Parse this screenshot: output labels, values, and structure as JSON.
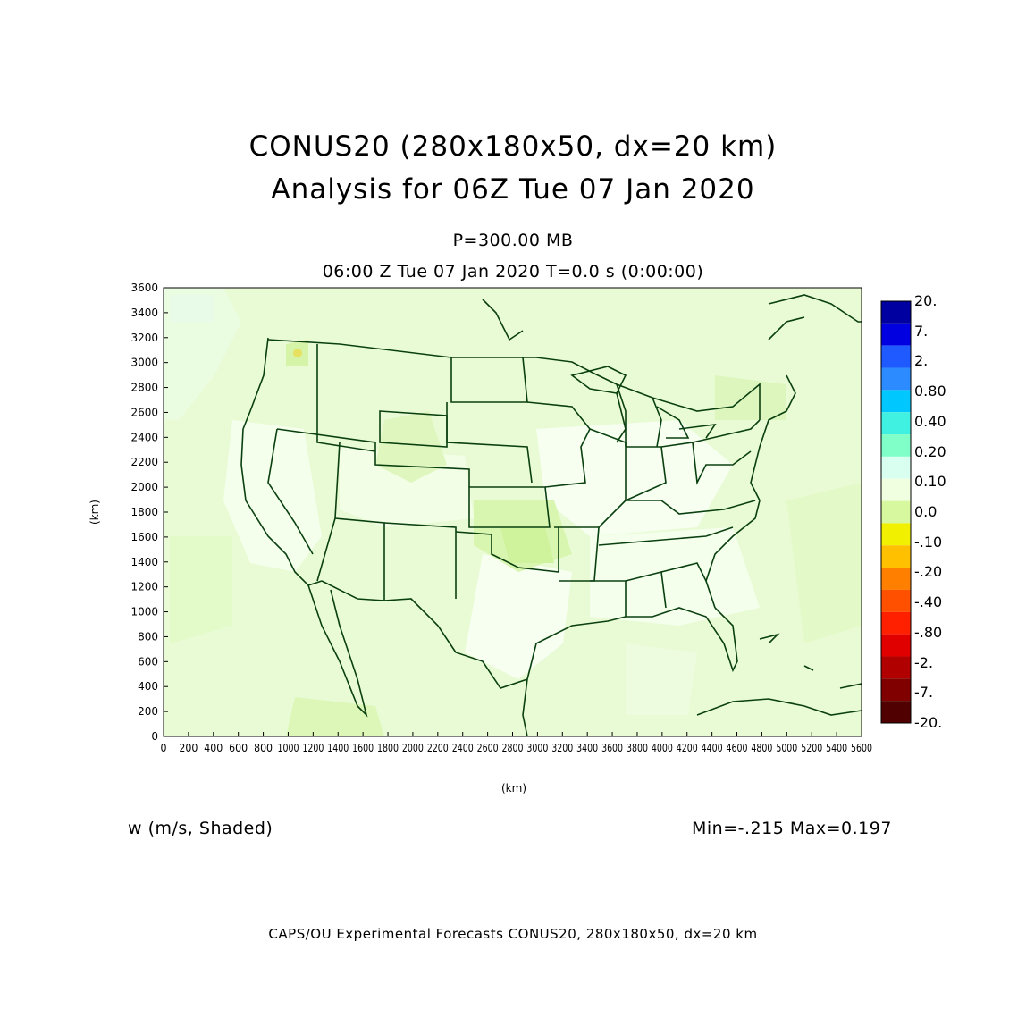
{
  "title_line1": "CONUS20 (280x180x50, dx=20 km)",
  "title_line2": "Analysis for 06Z Tue 07 Jan 2020",
  "level": "P=300.00 MB",
  "time_line": "06:00 Z Tue 07 Jan 2020    T=0.0 s (0:00:00)",
  "field_label": "w (m/s, Shaded)",
  "minmax": "Min=-.215 Max=0.197",
  "footer": "CAPS/OU Experimental Forecasts  CONUS20, 280x180x50, dx=20 km",
  "x_axis_label": "(km)",
  "y_axis_label": "(km)",
  "x_ticks": [
    "0",
    "200",
    "400",
    "600",
    "800",
    "1000",
    "1200",
    "1400",
    "1600",
    "1800",
    "2000",
    "2200",
    "2400",
    "2600",
    "2800",
    "3000",
    "3200",
    "3400",
    "3600",
    "3800",
    "4000",
    "4200",
    "4400",
    "4600",
    "4800",
    "5000",
    "5200",
    "5400",
    "5600"
  ],
  "y_ticks": [
    "0",
    "200",
    "400",
    "600",
    "800",
    "1000",
    "1200",
    "1400",
    "1600",
    "1800",
    "2000",
    "2200",
    "2400",
    "2600",
    "2800",
    "3000",
    "3200",
    "3400",
    "3600"
  ],
  "colorbar": {
    "labels": [
      "20.",
      "7.",
      "2.",
      "0.80",
      "0.40",
      "0.20",
      "0.10",
      "0.0",
      "-.10",
      "-.20",
      "-.40",
      "-.80",
      "-2.",
      "-7.",
      "-20."
    ],
    "colors": [
      "#0000a0",
      "#0000e0",
      "#1e5aff",
      "#2c8cff",
      "#00c8ff",
      "#40f0e0",
      "#80ffc8",
      "#d8fff0",
      "#f0ffe0",
      "#d8f8a0",
      "#f0f000",
      "#ffc000",
      "#ff8000",
      "#ff5000",
      "#ff2000",
      "#e00000",
      "#b00000",
      "#800000",
      "#500000"
    ]
  },
  "map": {
    "background": "#e9fbd5",
    "outline_color": "#0a4010"
  }
}
